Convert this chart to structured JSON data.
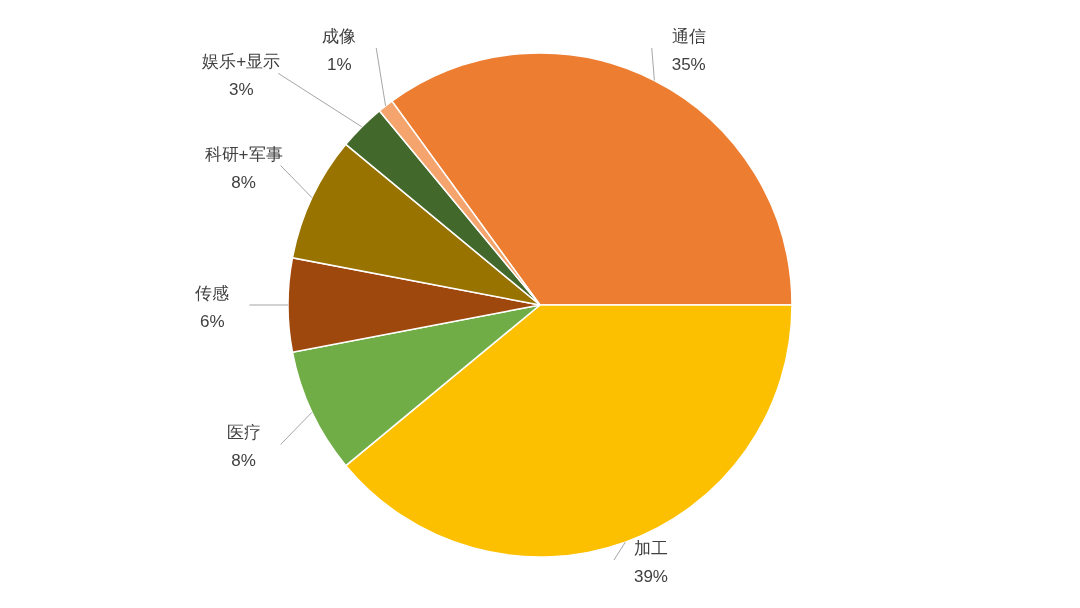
{
  "chart_data": {
    "type": "pie",
    "categories": [
      "通信",
      "加工",
      "医疗",
      "传感",
      "科研+军事",
      "娱乐+显示",
      "成像"
    ],
    "values": [
      35,
      39,
      8,
      6,
      8,
      3,
      1
    ],
    "colors": [
      "#ed7d31",
      "#fcc000",
      "#70ad47",
      "#9e480e",
      "#997300",
      "#43682b",
      "#f4a46c"
    ],
    "value_labels": [
      "35%",
      "39%",
      "8%",
      "6%",
      "8%",
      "3%",
      "1%"
    ]
  }
}
